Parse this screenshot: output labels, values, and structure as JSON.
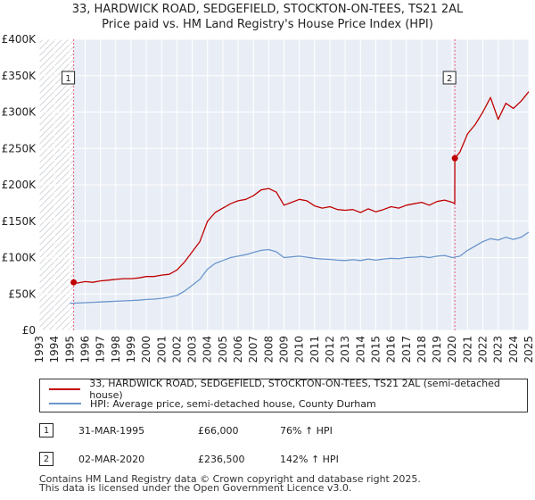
{
  "title_line1": "33, HARDWICK ROAD, SEDGEFIELD, STOCKTON-ON-TEES, TS21 2AL",
  "title_line2": "Price paid vs. HM Land Registry's House Price Index (HPI)",
  "colors": {
    "property": "#c00000",
    "hpi": "#6a96cc",
    "grid": "#ffffff",
    "plot_bg": "#e9eef6",
    "hatch": "#c8cbd0",
    "vline": "#e06080"
  },
  "chart_data": {
    "type": "line",
    "title": "Price paid vs. HM Land Registry's House Price Index (HPI)",
    "xlim": [
      1993,
      2025
    ],
    "ylim": [
      0,
      400000
    ],
    "y_ticks": [
      0,
      50000,
      100000,
      150000,
      200000,
      250000,
      300000,
      350000,
      400000
    ],
    "y_tick_labels": [
      "£0",
      "£50K",
      "£100K",
      "£150K",
      "£200K",
      "£250K",
      "£300K",
      "£350K",
      "£400K"
    ],
    "x_ticks": [
      1993,
      1994,
      1995,
      1996,
      1997,
      1998,
      1999,
      2000,
      2001,
      2002,
      2003,
      2004,
      2005,
      2006,
      2007,
      2008,
      2009,
      2010,
      2011,
      2012,
      2013,
      2014,
      2015,
      2016,
      2017,
      2018,
      2019,
      2020,
      2021,
      2022,
      2023,
      2024,
      2025
    ],
    "hatched_before": 1995.25,
    "series": [
      {
        "name": "33, HARDWICK ROAD, SEDGEFIELD, STOCKTON-ON-TEES, TS21 2AL (semi-detached house)",
        "color": "#c00000",
        "x": [
          1995.25,
          1995.5,
          1996.0,
          1996.5,
          1997.0,
          1997.5,
          1998.0,
          1998.5,
          1999.0,
          1999.5,
          2000.0,
          2000.5,
          2001.0,
          2001.5,
          2002.0,
          2002.5,
          2003.0,
          2003.5,
          2004.0,
          2004.5,
          2005.0,
          2005.5,
          2006.0,
          2006.5,
          2007.0,
          2007.5,
          2008.0,
          2008.5,
          2009.0,
          2009.5,
          2010.0,
          2010.5,
          2011.0,
          2011.5,
          2012.0,
          2012.5,
          2013.0,
          2013.5,
          2014.0,
          2014.5,
          2015.0,
          2015.5,
          2016.0,
          2016.5,
          2017.0,
          2017.5,
          2018.0,
          2018.5,
          2019.0,
          2019.5,
          2020.0,
          2020.16,
          2020.17,
          2020.5,
          2021.0,
          2021.5,
          2022.0,
          2022.5,
          2023.0,
          2023.5,
          2024.0,
          2024.5,
          2025.0
        ],
        "values": [
          66000,
          65000,
          67000,
          66000,
          68000,
          69000,
          70000,
          71000,
          71000,
          72000,
          74000,
          74000,
          76000,
          77000,
          83000,
          94000,
          108000,
          122000,
          150000,
          162000,
          168000,
          174000,
          178000,
          180000,
          185000,
          193000,
          195000,
          190000,
          172000,
          176000,
          180000,
          178000,
          171000,
          168000,
          170000,
          166000,
          165000,
          166000,
          162000,
          167000,
          163000,
          166000,
          170000,
          168000,
          172000,
          174000,
          176000,
          172000,
          177000,
          179000,
          176000,
          174000,
          236500,
          245000,
          270000,
          283000,
          300000,
          320000,
          290000,
          312000,
          305000,
          315000,
          328000
        ]
      },
      {
        "name": "HPI: Average price, semi-detached house, County Durham",
        "color": "#6a96cc",
        "x": [
          1995.0,
          1995.5,
          1996.0,
          1996.5,
          1997.0,
          1997.5,
          1998.0,
          1998.5,
          1999.0,
          1999.5,
          2000.0,
          2000.5,
          2001.0,
          2001.5,
          2002.0,
          2002.5,
          2003.0,
          2003.5,
          2004.0,
          2004.5,
          2005.0,
          2005.5,
          2006.0,
          2006.5,
          2007.0,
          2007.5,
          2008.0,
          2008.5,
          2009.0,
          2009.5,
          2010.0,
          2010.5,
          2011.0,
          2011.5,
          2012.0,
          2012.5,
          2013.0,
          2013.5,
          2014.0,
          2014.5,
          2015.0,
          2015.5,
          2016.0,
          2016.5,
          2017.0,
          2017.5,
          2018.0,
          2018.5,
          2019.0,
          2019.5,
          2020.0,
          2020.5,
          2021.0,
          2021.5,
          2022.0,
          2022.5,
          2023.0,
          2023.5,
          2024.0,
          2024.5,
          2025.0
        ],
        "values": [
          37000,
          37500,
          38000,
          38500,
          39000,
          39500,
          40000,
          40500,
          41000,
          41500,
          42500,
          43000,
          44000,
          45500,
          48000,
          54000,
          62000,
          70000,
          84000,
          92000,
          96000,
          100000,
          102000,
          104000,
          107000,
          110000,
          111000,
          108000,
          100000,
          101000,
          102000,
          100500,
          99000,
          98000,
          97500,
          96500,
          96000,
          97000,
          96000,
          98000,
          96500,
          98000,
          99000,
          98500,
          100000,
          100500,
          101500,
          100000,
          102000,
          103000,
          100000,
          102000,
          110000,
          116000,
          122000,
          126000,
          124000,
          128000,
          125000,
          128000,
          135000
        ]
      }
    ],
    "sales": [
      {
        "label": "1",
        "x": 1995.25,
        "value": 66000
      },
      {
        "label": "2",
        "x": 2020.17,
        "value": 236500
      }
    ]
  },
  "legend": {
    "property_label": "33, HARDWICK ROAD, SEDGEFIELD, STOCKTON-ON-TEES, TS21 2AL (semi-detached house)",
    "hpi_label": "HPI: Average price, semi-detached house, County Durham"
  },
  "transactions": [
    {
      "num": "1",
      "date": "31-MAR-1995",
      "price": "£66,000",
      "hpi": "76% ↑ HPI"
    },
    {
      "num": "2",
      "date": "02-MAR-2020",
      "price": "£236,500",
      "hpi": "142% ↑ HPI"
    }
  ],
  "footer_line1": "Contains HM Land Registry data © Crown copyright and database right 2025.",
  "footer_line2": "This data is licensed under the Open Government Licence v3.0."
}
